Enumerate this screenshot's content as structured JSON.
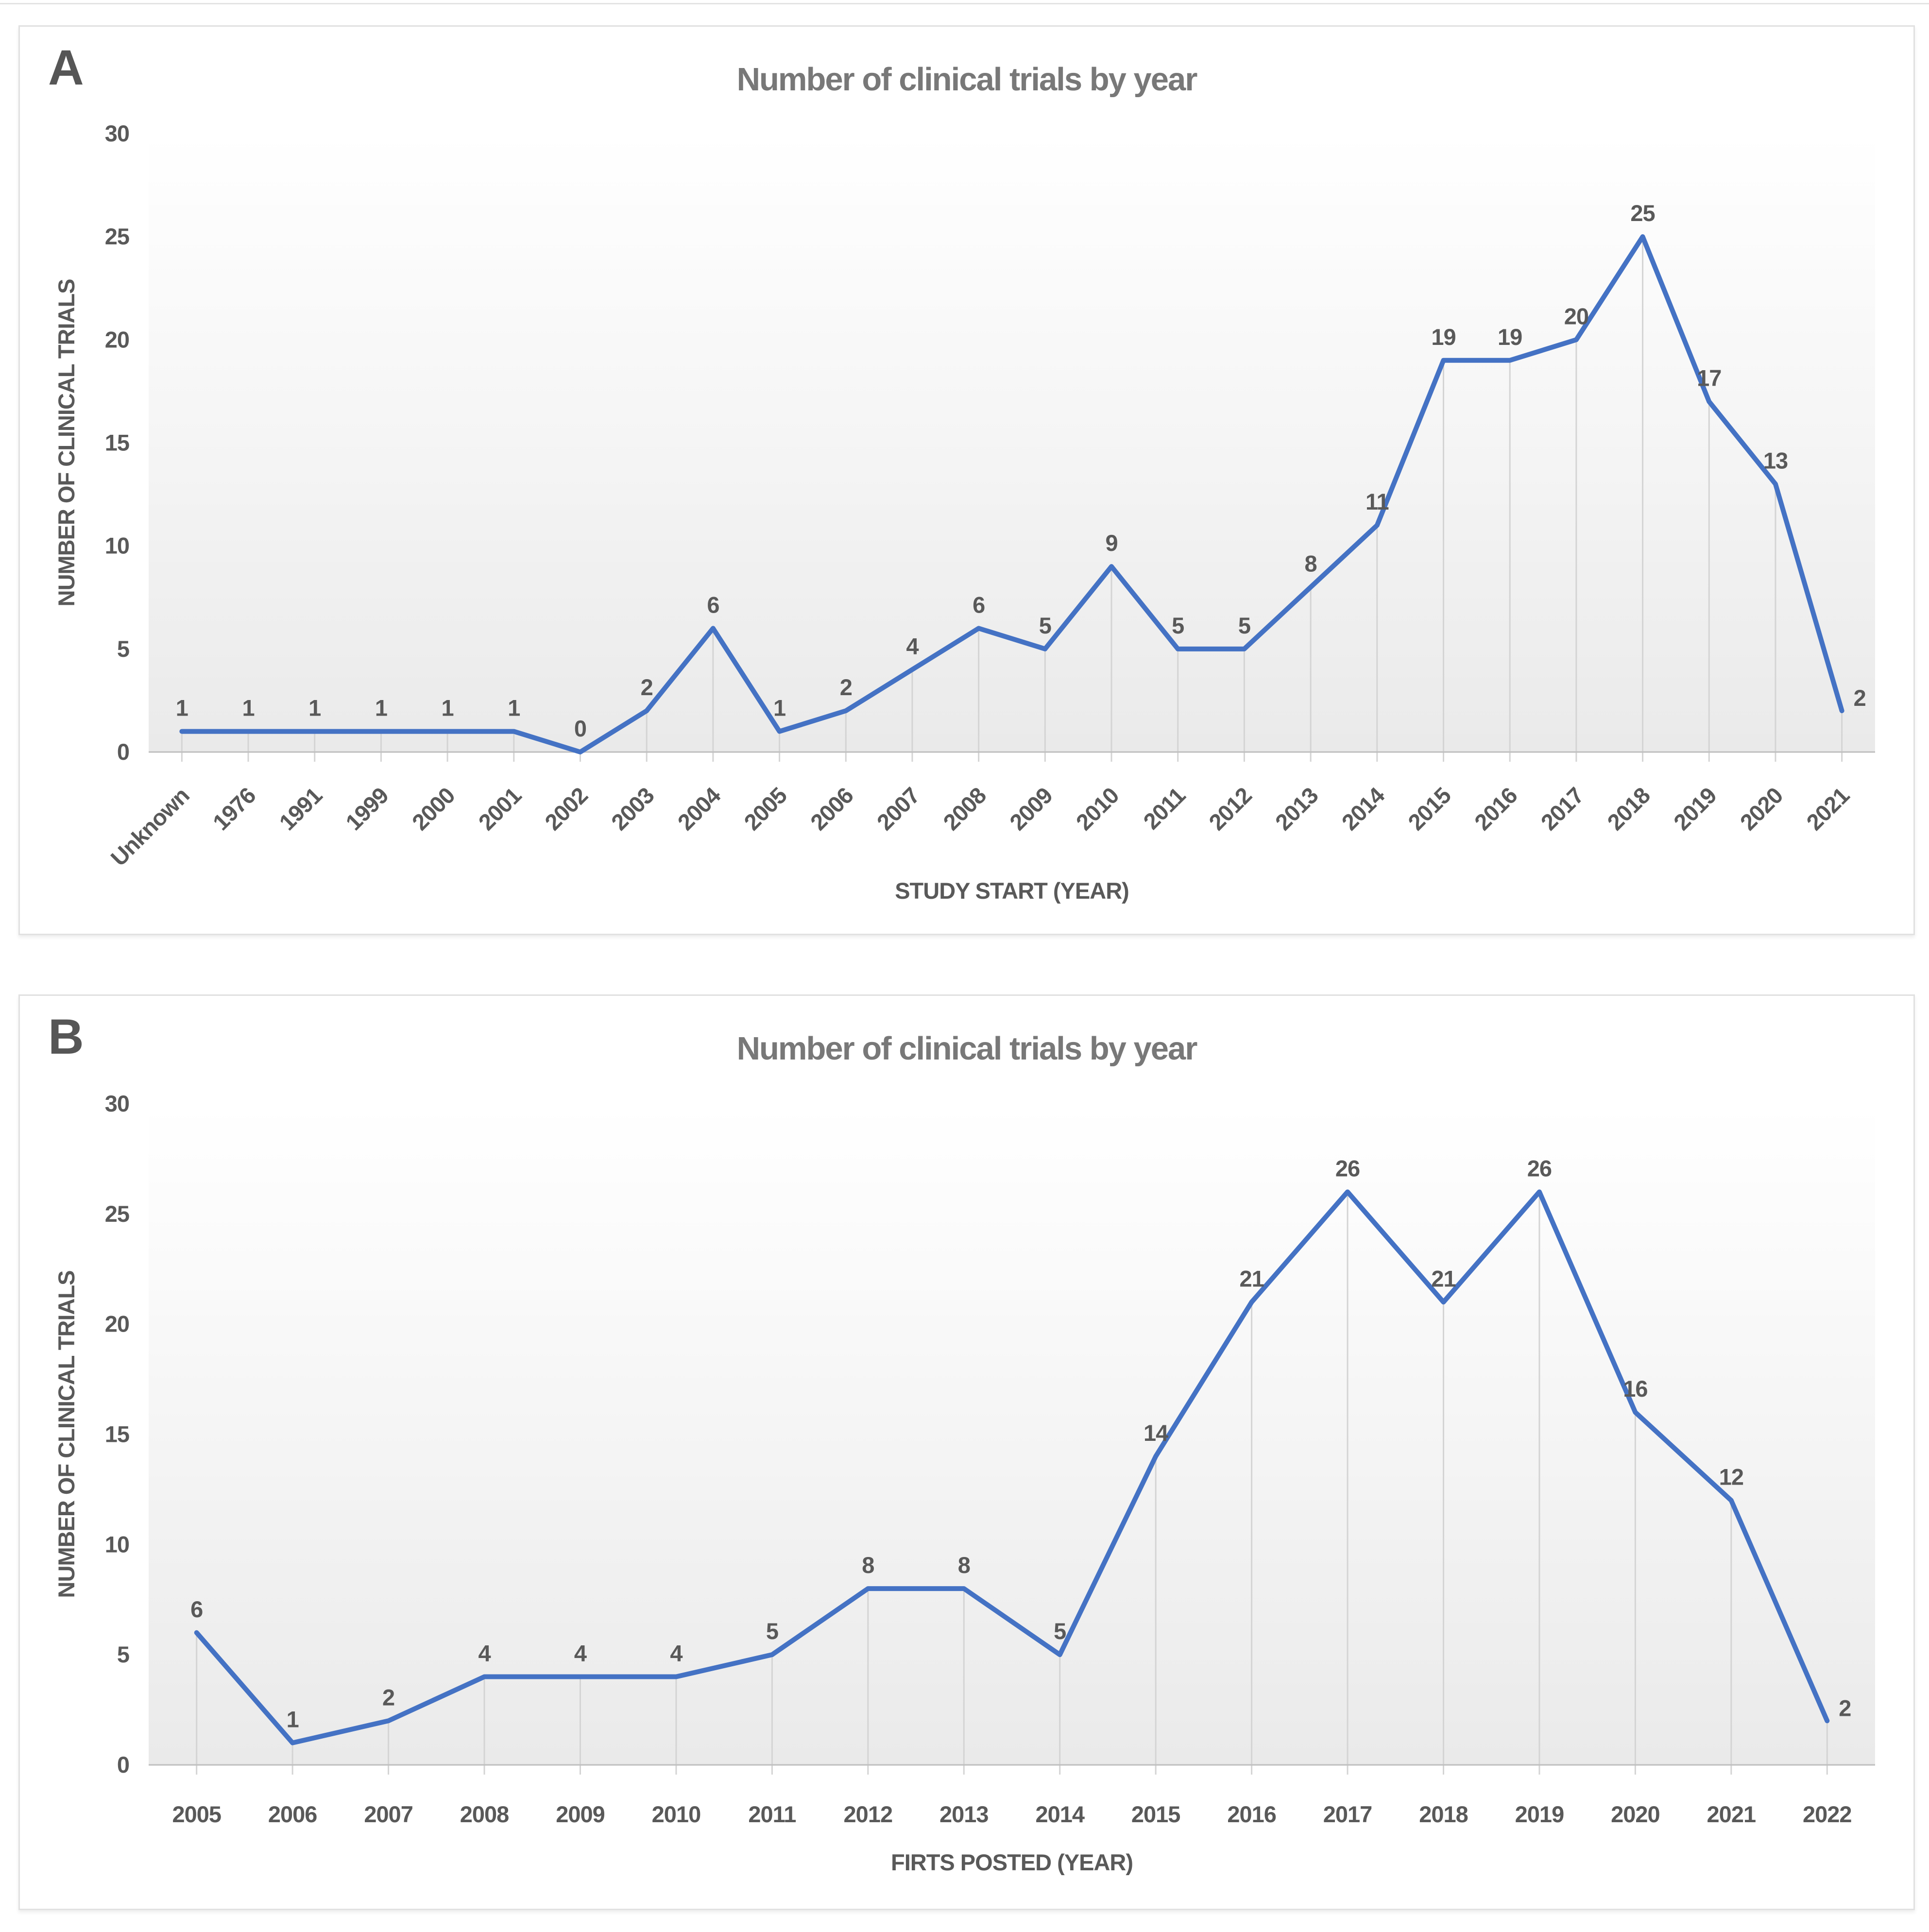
{
  "figure": {
    "top_rule": true,
    "colors": {
      "line": "#4472C4",
      "data_label": "#595959",
      "tick_label": "#595959",
      "axis_title": "#595959",
      "chart_title": "#787878",
      "panel_letter": "#565656",
      "axis_line": "#bfbfbf",
      "drop_line": "#d4d4d4",
      "plot_bg_top": "#ffffff",
      "plot_bg_bottom": "#eaeaea",
      "panel_border": "#e1e1e1"
    },
    "panels": [
      {
        "letter": "A",
        "title": "Number of clinical trials by year",
        "x_axis_title": "STUDY START (YEAR)",
        "y_axis_title": "NUMBER OF CLINICAL TRIALS",
        "x_label_rotation": -45
      },
      {
        "letter": "B",
        "title": "Number of clinical trials by year",
        "x_axis_title": "FIRTS POSTED (YEAR)",
        "y_axis_title": "NUMBER OF CLINICAL TRIALS",
        "x_label_rotation": 0
      }
    ]
  },
  "chart_data": [
    {
      "type": "line",
      "title": "Number of clinical trials by year",
      "xlabel": "STUDY START (YEAR)",
      "ylabel": "NUMBER OF CLINICAL TRIALS",
      "ylim": [
        0,
        30
      ],
      "y_ticks": [
        0,
        5,
        10,
        15,
        20,
        25,
        30
      ],
      "grid": false,
      "legend": false,
      "drop_lines": true,
      "data_labels": true,
      "categories": [
        "Unknown",
        "1976",
        "1991",
        "1999",
        "2000",
        "2001",
        "2002",
        "2003",
        "2004",
        "2005",
        "2006",
        "2007",
        "2008",
        "2009",
        "2010",
        "2011",
        "2012",
        "2013",
        "2014",
        "2015",
        "2016",
        "2017",
        "2018",
        "2019",
        "2020",
        "2021"
      ],
      "values": [
        1,
        1,
        1,
        1,
        1,
        1,
        0,
        2,
        6,
        1,
        2,
        4,
        6,
        5,
        9,
        5,
        5,
        8,
        11,
        19,
        19,
        20,
        25,
        17,
        13,
        2
      ]
    },
    {
      "type": "line",
      "title": "Number of clinical trials by year",
      "xlabel": "FIRTS POSTED (YEAR)",
      "ylabel": "NUMBER OF CLINICAL TRIALS",
      "ylim": [
        0,
        30
      ],
      "y_ticks": [
        0,
        5,
        10,
        15,
        20,
        25,
        30
      ],
      "grid": false,
      "legend": false,
      "drop_lines": true,
      "data_labels": true,
      "categories": [
        "2005",
        "2006",
        "2007",
        "2008",
        "2009",
        "2010",
        "2011",
        "2012",
        "2013",
        "2014",
        "2015",
        "2016",
        "2017",
        "2018",
        "2019",
        "2020",
        "2021",
        "2022"
      ],
      "values": [
        6,
        1,
        2,
        4,
        4,
        4,
        5,
        8,
        8,
        5,
        14,
        21,
        26,
        21,
        26,
        16,
        12,
        2
      ]
    }
  ]
}
